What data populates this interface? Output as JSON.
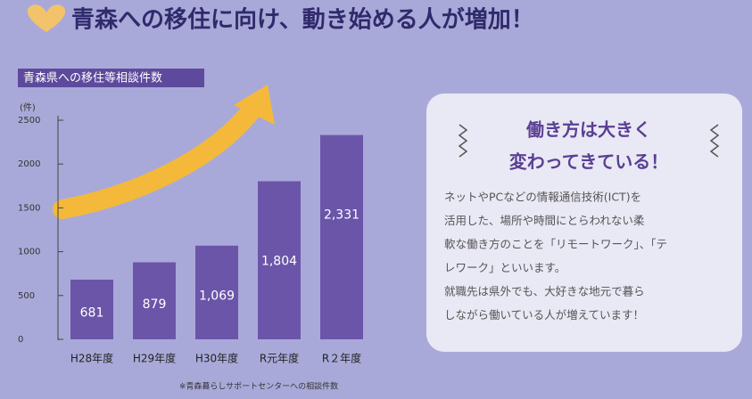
{
  "title": "青森への移住に向け、動き始める人が増加！",
  "chart_data": {
    "type": "bar",
    "title": "青森県への移住等相談件数",
    "y_unit": "(件)",
    "categories": [
      "H28年度",
      "H29年度",
      "H30年度",
      "R元年度",
      "R２年度"
    ],
    "values": [
      681,
      879,
      1069,
      1804,
      2331
    ],
    "value_labels": [
      "681",
      "879",
      "1,069",
      "1,804",
      "2,331"
    ],
    "color": "#6b55a9",
    "ylim": [
      0,
      2500
    ],
    "yticks": [
      0,
      500,
      1000,
      1500,
      2000,
      2500
    ],
    "note": "※青森暮らしサポートセンターへの相談件数"
  },
  "card": {
    "heading": [
      "働き方は大きく",
      "変わってきている！"
    ],
    "body": [
      "ネットやPCなどの情報通信技術(ICT)を",
      "活用した、場所や時間にとらわれない柔",
      "軟な働き方のことを「リモートワーク」、「テ",
      "レワーク」といいます。",
      "就職先は県外でも、大好きな地元で暮ら",
      "しながら働いている人が増えています！"
    ]
  }
}
